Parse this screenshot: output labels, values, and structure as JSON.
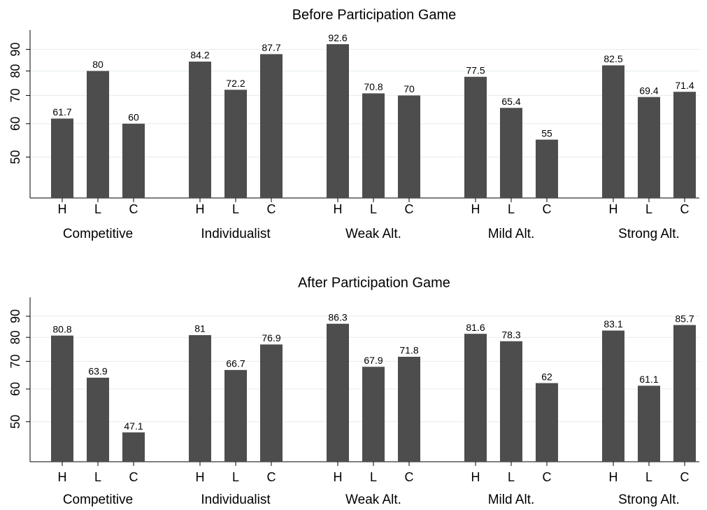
{
  "chart_data": [
    {
      "type": "bar",
      "title": "Before Participation Game",
      "groups": [
        "Competitive",
        "Individualist",
        "Weak Alt.",
        "Mild Alt.",
        "Strong Alt."
      ],
      "categories": [
        "H",
        "L",
        "C"
      ],
      "values": [
        [
          61.7,
          80,
          60
        ],
        [
          84.2,
          72.2,
          87.7
        ],
        [
          92.6,
          70.8,
          70
        ],
        [
          77.5,
          65.4,
          55
        ],
        [
          82.5,
          69.4,
          71.4
        ]
      ],
      "color": "#4d4d4d",
      "ylim": [
        40,
        100
      ],
      "yticks": [
        50,
        60,
        70,
        80,
        90
      ],
      "log_scale": true,
      "grid": true
    },
    {
      "type": "bar",
      "title": "After Participation Game",
      "groups": [
        "Competitive",
        "Individualist",
        "Weak Alt.",
        "Mild Alt.",
        "Strong Alt."
      ],
      "categories": [
        "H",
        "L",
        "C"
      ],
      "values": [
        [
          80.8,
          63.9,
          47.1
        ],
        [
          81,
          66.7,
          76.9
        ],
        [
          86.3,
          67.9,
          71.8
        ],
        [
          81.6,
          78.3,
          62
        ],
        [
          83.1,
          61.1,
          85.7
        ]
      ],
      "color": "#4d4d4d",
      "ylim": [
        40,
        100
      ],
      "yticks": [
        50,
        60,
        70,
        80,
        90
      ],
      "log_scale": true,
      "grid": true
    }
  ]
}
